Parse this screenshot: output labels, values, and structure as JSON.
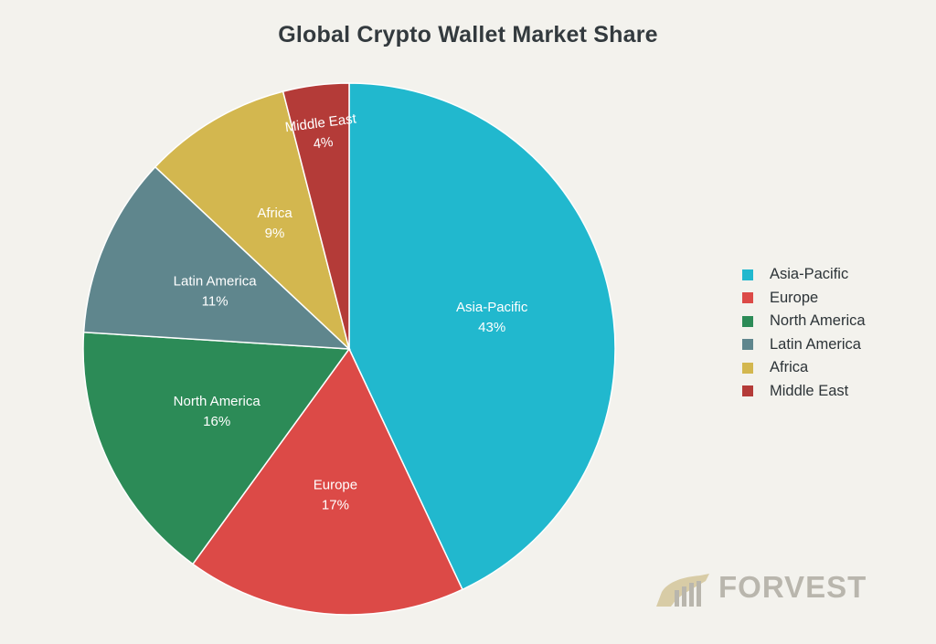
{
  "chart_data": {
    "type": "pie",
    "title": "Global Crypto Wallet Market Share",
    "categories": [
      "Asia-Pacific",
      "Europe",
      "North America",
      "Latin America",
      "Africa",
      "Middle East"
    ],
    "values": [
      43,
      17,
      16,
      11,
      9,
      4
    ],
    "value_labels": [
      "43%",
      "17%",
      "16%",
      "11%",
      "9%",
      "4%"
    ],
    "colors": [
      "#21b8ce",
      "#dc4a47",
      "#2c8b57",
      "#5f868d",
      "#d3b74f",
      "#b43b38"
    ],
    "legend_position": "right",
    "start": "top",
    "direction": "clockwise"
  },
  "logo": {
    "text": "FORVEST"
  }
}
